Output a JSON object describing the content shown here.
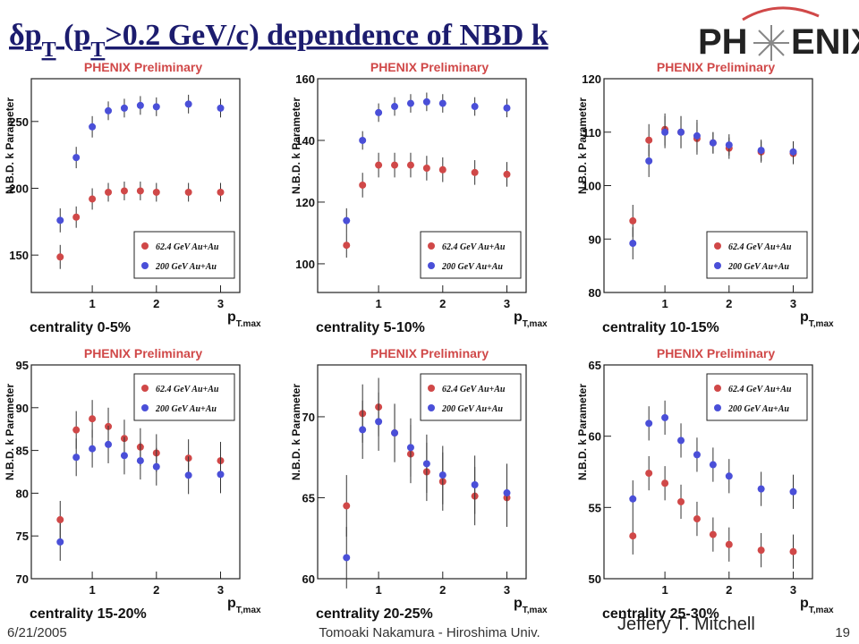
{
  "slide": {
    "title": [
      {
        "text": "δp"
      },
      {
        "text": "T",
        "sub": true
      },
      {
        "text": " (p"
      },
      {
        "text": "T",
        "sub": true
      },
      {
        "text": ">0.2 GeV/c) dependence of NBD k"
      }
    ],
    "logo": [
      "PH",
      "ENIX"
    ],
    "date": "6/21/2005",
    "author": "Tomoaki Nakamura - Hiroshima Univ.",
    "page": "19",
    "presenter": "Jeffery T. Mitchell"
  },
  "chart_data": [
    {
      "type": "scatter",
      "title": "PHENIX Preliminary",
      "annotation": "centrality 0-5%",
      "ylabel": "N.B.D. k Parameter",
      "xlabel": "p",
      "xlabel_sub": "T.max",
      "legend": "lower right",
      "x": [
        0.5,
        0.75,
        1.0,
        1.25,
        1.5,
        1.75,
        2.0,
        2.5,
        3.0
      ],
      "xlim": [
        0.05,
        3.3
      ],
      "xticks": [
        1,
        2,
        3
      ],
      "ylim": [
        122,
        282
      ],
      "yticks": [
        150,
        200,
        250
      ],
      "series": [
        {
          "name": "62.4 GeV Au+Au",
          "color": "#d04848",
          "values": [
            148.6,
            178.4,
            192,
            197,
            198,
            198,
            197,
            197,
            197
          ],
          "errors": [
            9,
            8,
            8,
            7,
            7,
            7,
            7,
            7,
            7
          ]
        },
        {
          "name": "200 GeV Au+Au",
          "color": "#4a4fd8",
          "values": [
            176,
            223,
            246,
            258,
            260,
            262,
            261,
            263,
            260
          ],
          "errors": [
            9,
            8,
            8,
            7,
            7,
            7,
            7,
            7,
            7
          ]
        }
      ]
    },
    {
      "type": "scatter",
      "title": "PHENIX Preliminary",
      "annotation": "centrality 5-10%",
      "ylabel": "N.B.D. k Parameter",
      "xlabel": "p",
      "xlabel_sub": "T,max",
      "legend": "lower right",
      "x": [
        0.5,
        0.75,
        1.0,
        1.25,
        1.5,
        1.75,
        2.0,
        2.5,
        3.0
      ],
      "xlim": [
        0.05,
        3.3
      ],
      "xticks": [
        1,
        2,
        3
      ],
      "ylim": [
        90.7,
        160
      ],
      "yticks": [
        100,
        120,
        140,
        160
      ],
      "series": [
        {
          "name": "62.4 GeV Au+Au",
          "color": "#d04848",
          "values": [
            106,
            125.5,
            132,
            132,
            132,
            131,
            130.5,
            129.6,
            129
          ],
          "errors": [
            4,
            4,
            4,
            4,
            4,
            4,
            4,
            4,
            4
          ]
        },
        {
          "name": "200 GeV Au+Au",
          "color": "#4a4fd8",
          "values": [
            114,
            140,
            149,
            151,
            152,
            152.5,
            152,
            151,
            150.5
          ],
          "errors": [
            4,
            3,
            3,
            3,
            3,
            3,
            3,
            3,
            3
          ]
        }
      ]
    },
    {
      "type": "scatter",
      "title": "PHENIX Preliminary",
      "annotation": "centrality 10-15%",
      "ylabel": "N.B.D. k Parameter",
      "xlabel": "p",
      "xlabel_sub": "T,max",
      "legend": "lower right",
      "x": [
        0.5,
        0.75,
        1.0,
        1.25,
        1.5,
        1.75,
        2.0,
        2.5,
        3.0
      ],
      "xlim": [
        0.05,
        3.3
      ],
      "xticks": [
        1,
        2,
        3
      ],
      "ylim": [
        80,
        120
      ],
      "yticks": [
        80,
        90,
        100,
        110,
        120
      ],
      "series": [
        {
          "name": "62.4 GeV Au+Au",
          "color": "#d04848",
          "values": [
            93.4,
            108.5,
            110.5,
            110,
            108.8,
            108,
            107,
            106.3,
            106
          ],
          "errors": [
            3,
            3,
            3,
            3,
            3,
            2,
            2,
            2,
            2
          ]
        },
        {
          "name": "200 GeV Au+Au",
          "color": "#4a4fd8",
          "values": [
            89.2,
            104.6,
            110,
            110,
            109.3,
            108,
            107.6,
            106.6,
            106.3
          ],
          "errors": [
            3,
            3,
            3,
            3,
            3,
            2,
            2,
            2,
            2
          ]
        }
      ]
    },
    {
      "type": "scatter",
      "title": "PHENIX Preliminary",
      "annotation": "centrality 15-20%",
      "ylabel": "N.B.D. k Parameter",
      "xlabel": "p",
      "xlabel_sub": "T,max",
      "legend": "upper right",
      "x": [
        0.5,
        0.75,
        1.0,
        1.25,
        1.5,
        1.75,
        2.0,
        2.5,
        3.0
      ],
      "xlim": [
        0.05,
        3.3
      ],
      "xticks": [
        1,
        2,
        3
      ],
      "ylim": [
        70,
        95
      ],
      "yticks": [
        70,
        75,
        80,
        85,
        90,
        95
      ],
      "series": [
        {
          "name": "62.4 GeV Au+Au",
          "color": "#d04848",
          "values": [
            76.9,
            87.4,
            88.7,
            87.8,
            86.4,
            85.4,
            84.7,
            84.1,
            83.8
          ],
          "errors": [
            2.2,
            2.2,
            2.2,
            2.2,
            2.2,
            2.2,
            2.2,
            2.2,
            2.2
          ]
        },
        {
          "name": "200 GeV Au+Au",
          "color": "#4a4fd8",
          "values": [
            74.3,
            84.2,
            85.2,
            85.7,
            84.4,
            83.8,
            83.1,
            82.1,
            82.2
          ],
          "errors": [
            2.2,
            2.2,
            2.2,
            2.2,
            2.2,
            2.2,
            2.2,
            2.2,
            2.2
          ]
        }
      ]
    },
    {
      "type": "scatter",
      "title": "PHENIX Preliminary",
      "annotation": "centrality 20-25%",
      "ylabel": "N.B.D. k Parameter",
      "xlabel": "p",
      "xlabel_sub": "T,max",
      "legend": "upper right",
      "x": [
        0.5,
        0.75,
        1.0,
        1.25,
        1.5,
        1.75,
        2.0,
        2.5,
        3.0
      ],
      "xlim": [
        0.05,
        3.3
      ],
      "xticks": [
        1,
        2,
        3
      ],
      "ylim": [
        60,
        73.2
      ],
      "yticks": [
        60,
        65,
        70
      ],
      "series": [
        {
          "name": "62.4 GeV Au+Au",
          "color": "#d04848",
          "values": [
            64.5,
            70.2,
            70.6,
            69,
            67.7,
            66.6,
            66,
            65.1,
            65
          ],
          "errors": [
            1.9,
            1.8,
            1.8,
            1.8,
            1.8,
            1.8,
            1.8,
            1.8,
            1.8
          ]
        },
        {
          "name": "200 GeV Au+Au",
          "color": "#4a4fd8",
          "values": [
            61.3,
            69.2,
            69.7,
            69,
            68.1,
            67.1,
            66.4,
            65.8,
            65.3
          ],
          "errors": [
            1.9,
            1.8,
            1.8,
            1.8,
            1.8,
            1.8,
            1.8,
            1.8,
            1.8
          ]
        }
      ]
    },
    {
      "type": "scatter",
      "title": "PHENIX Preliminary",
      "annotation": "centrality 25-30%",
      "ylabel": "N.B.D. k Parameter",
      "xlabel": "p",
      "xlabel_sub": "T,max",
      "legend": "upper right",
      "x": [
        0.5,
        0.75,
        1.0,
        1.25,
        1.5,
        1.75,
        2.0,
        2.5,
        3.0
      ],
      "xlim": [
        0.05,
        3.3
      ],
      "xticks": [
        1,
        2,
        3
      ],
      "ylim": [
        50,
        65
      ],
      "yticks": [
        50,
        55,
        60,
        65
      ],
      "series": [
        {
          "name": "62.4 GeV Au+Au",
          "color": "#d04848",
          "values": [
            53,
            57.4,
            56.7,
            55.4,
            54.2,
            53.1,
            52.4,
            52,
            51.9
          ],
          "errors": [
            1.3,
            1.2,
            1.2,
            1.2,
            1.2,
            1.2,
            1.2,
            1.2,
            1.2
          ]
        },
        {
          "name": "200 GeV Au+Au",
          "color": "#4a4fd8",
          "values": [
            55.6,
            60.9,
            61.3,
            59.7,
            58.7,
            58,
            57.2,
            56.3,
            56.1
          ],
          "errors": [
            1.3,
            1.2,
            1.2,
            1.2,
            1.2,
            1.2,
            1.2,
            1.2,
            1.2
          ]
        }
      ]
    }
  ]
}
